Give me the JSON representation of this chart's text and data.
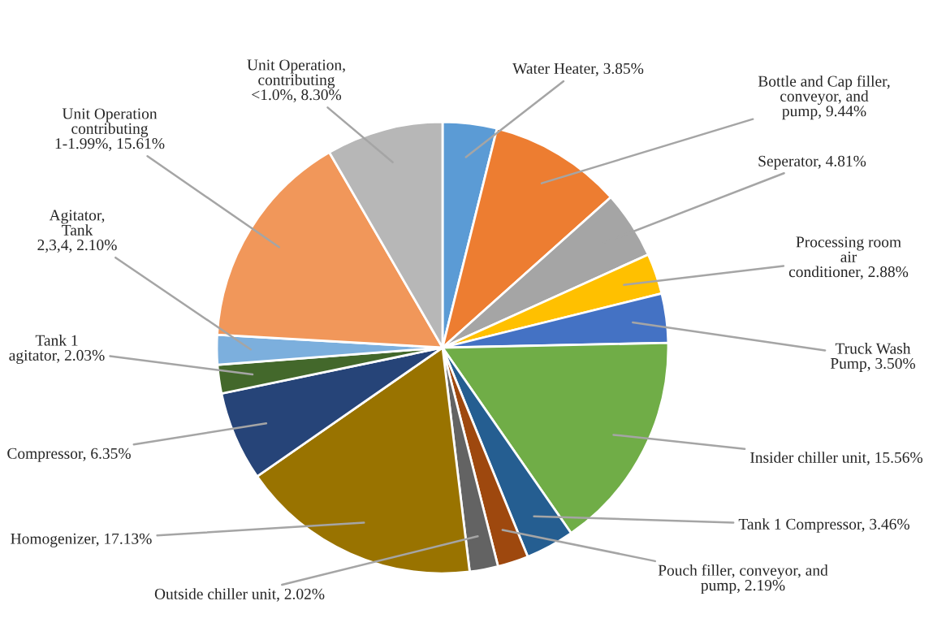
{
  "chart_data": {
    "type": "pie",
    "categories": [
      "Water Heater",
      "Bottle and Cap filler, conveyor, and pump",
      "Seperator",
      "Processing room air conditioner",
      "Truck Wash Pump",
      "Insider chiller unit",
      "Tank 1 Compressor",
      "Pouch filler, conveyor, and pump",
      "Outside chiller unit",
      "Homogenizer",
      "Compressor",
      "Tank 1 agitator",
      "Agitator, Tank 2,3,4",
      "Unit Operation contributing 1-1.99%",
      "Unit Operation, contributing <1.0%"
    ],
    "values": [
      3.85,
      9.44,
      4.81,
      2.88,
      3.5,
      15.56,
      3.46,
      2.19,
      2.02,
      17.13,
      6.35,
      2.03,
      2.1,
      15.61,
      8.3
    ],
    "colors": [
      "#5b9bd5",
      "#ed7d31",
      "#a5a5a5",
      "#ffc000",
      "#4472c4",
      "#70ad47",
      "#255e91",
      "#9e480e",
      "#636363",
      "#997300",
      "#264478",
      "#43682b",
      "#7cafdd",
      "#f1975a",
      "#b7b7b7"
    ],
    "value_labels": [
      "3.85%",
      "9.44%",
      "4.81%",
      "2.88%",
      "3.50%",
      "15.56%",
      "3.46%",
      "2.19%",
      "2.02%",
      "17.13%",
      "6.35%",
      "2.03%",
      "2.10%",
      "15.61%",
      "8.30%"
    ],
    "legend": false
  }
}
